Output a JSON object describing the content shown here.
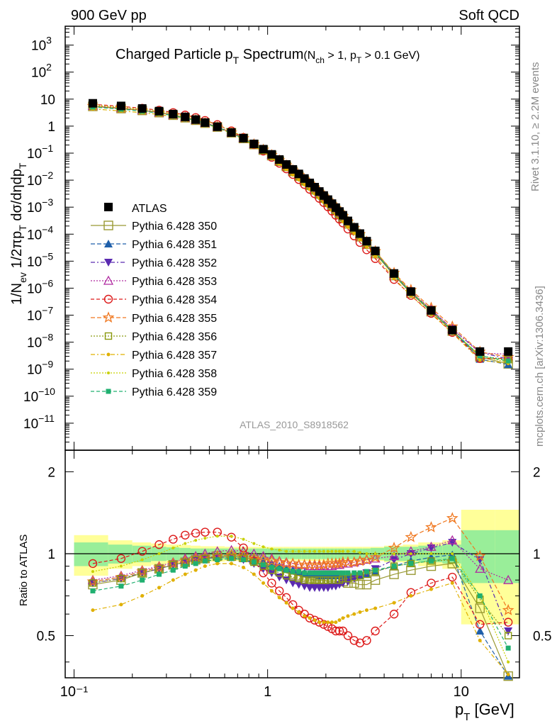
{
  "header": {
    "left": "900 GeV pp",
    "right": "Soft QCD"
  },
  "side_labels": {
    "rivet": "Rivet 3.1.10, ≥ 2.2M events",
    "mcplots": "mcplots.cern.ch [arXiv:1306.3436]"
  },
  "watermark": "ATLAS_2010_S8918562",
  "chart_data": {
    "type": "scatter",
    "title_main": "Charged Particle p",
    "title_main_sub": "T",
    "title_main_rest": " Spectrum",
    "title_cut": "(N",
    "title_cut_sub1": "ch",
    "title_cut_mid": " > 1, p",
    "title_cut_sub2": "T",
    "title_cut_rest": " > 0.1 GeV)",
    "ylabel_text": "1/N",
    "ylabel_sub1": "ev",
    "ylabel_mid": " 1/2πp",
    "ylabel_sub2": "T",
    "ylabel_rest": " dσ/dηdp",
    "ylabel_sub3": "T",
    "xlabel_main": "p",
    "xlabel_sub": "T",
    "xlabel_rest": "  [GeV]",
    "ratio_ylabel": "Ratio to ATLAS",
    "xscale": "log",
    "yscale": "log",
    "xlim": [
      0.09,
      20
    ],
    "ylim": [
      1e-12,
      5000
    ],
    "ratio_ylim": [
      0.35,
      2.4
    ],
    "x_tick_labels": [
      "10⁻¹",
      "1",
      "10"
    ],
    "y_tick_labels": [
      {
        "base": "10",
        "exp": "3"
      },
      {
        "base": "10",
        "exp": "2"
      },
      {
        "base": "10",
        "exp": ""
      },
      {
        "base": "1",
        "exp": ""
      },
      {
        "base": "10",
        "exp": "−1"
      },
      {
        "base": "10",
        "exp": "−2"
      },
      {
        "base": "10",
        "exp": "−3"
      },
      {
        "base": "10",
        "exp": "−4"
      },
      {
        "base": "10",
        "exp": "−5"
      },
      {
        "base": "10",
        "exp": "−6"
      },
      {
        "base": "10",
        "exp": "−7"
      },
      {
        "base": "10",
        "exp": "−8"
      },
      {
        "base": "10",
        "exp": "−9"
      },
      {
        "base": "10",
        "exp": "−10"
      },
      {
        "base": "10",
        "exp": "−11"
      }
    ],
    "ratio_tick_labels": [
      "2",
      "1",
      "0.5"
    ],
    "x": [
      0.125,
      0.175,
      0.225,
      0.275,
      0.325,
      0.375,
      0.425,
      0.475,
      0.55,
      0.65,
      0.75,
      0.85,
      0.95,
      1.05,
      1.15,
      1.25,
      1.35,
      1.45,
      1.55,
      1.65,
      1.75,
      1.85,
      1.95,
      2.05,
      2.15,
      2.25,
      2.35,
      2.45,
      2.6,
      2.8,
      3.0,
      3.25,
      3.6,
      4.5,
      5.5,
      7.0,
      9.0,
      12.5,
      17.5
    ],
    "data_values": [
      7.0,
      5.6,
      4.5,
      3.6,
      2.8,
      2.2,
      1.75,
      1.35,
      0.95,
      0.58,
      0.36,
      0.22,
      0.14,
      0.09,
      0.058,
      0.038,
      0.025,
      0.017,
      0.0115,
      0.0079,
      0.0055,
      0.0038,
      0.0027,
      0.0019,
      0.00135,
      0.00096,
      0.00069,
      0.0005,
      0.00031,
      0.00018,
      0.000105,
      5.5e-05,
      2.4e-05,
      3.5e-06,
      7.5e-07,
      1.5e-07,
      2.8e-08,
      4.5e-09,
      4.5e-09
    ],
    "band_x_edges": [
      0.1,
      0.15,
      0.2,
      0.25,
      0.3,
      0.35,
      0.4,
      0.45,
      0.5,
      0.6,
      0.7,
      0.8,
      0.9,
      1.0,
      1.1,
      1.2,
      1.3,
      1.4,
      1.5,
      1.6,
      1.7,
      1.8,
      1.9,
      2.0,
      2.1,
      2.2,
      2.3,
      2.4,
      2.5,
      2.7,
      2.9,
      3.1,
      3.4,
      4.0,
      5.0,
      6.0,
      8.0,
      10.0,
      15.0,
      20.0
    ],
    "band_stat": [
      0.1,
      0.08,
      0.07,
      0.06,
      0.055,
      0.05,
      0.045,
      0.045,
      0.045,
      0.045,
      0.045,
      0.045,
      0.045,
      0.045,
      0.045,
      0.045,
      0.045,
      0.045,
      0.045,
      0.045,
      0.045,
      0.045,
      0.045,
      0.045,
      0.045,
      0.045,
      0.045,
      0.045,
      0.045,
      0.045,
      0.045,
      0.045,
      0.05,
      0.06,
      0.06,
      0.07,
      0.08,
      0.22,
      0.22
    ],
    "band_total": [
      0.17,
      0.12,
      0.1,
      0.09,
      0.08,
      0.075,
      0.07,
      0.065,
      0.065,
      0.06,
      0.06,
      0.06,
      0.06,
      0.06,
      0.06,
      0.06,
      0.06,
      0.06,
      0.06,
      0.06,
      0.06,
      0.06,
      0.06,
      0.06,
      0.06,
      0.06,
      0.06,
      0.06,
      0.06,
      0.06,
      0.06,
      0.06,
      0.06,
      0.07,
      0.08,
      0.1,
      0.12,
      0.45,
      0.45
    ],
    "legend": {
      "placement": "middle-left",
      "data_label": "ATLAS"
    },
    "series": [
      {
        "name": "Pythia 6.428 350",
        "color": "#999933",
        "marker": "square-open",
        "dash": "solid",
        "ratios": [
          0.77,
          0.8,
          0.85,
          0.88,
          0.91,
          0.93,
          0.95,
          0.96,
          0.98,
          0.98,
          0.97,
          0.95,
          0.93,
          0.9,
          0.87,
          0.85,
          0.84,
          0.83,
          0.82,
          0.81,
          0.8,
          0.8,
          0.8,
          0.79,
          0.79,
          0.79,
          0.79,
          0.79,
          0.78,
          0.78,
          0.77,
          0.77,
          0.8,
          0.84,
          0.87,
          0.9,
          0.92,
          0.63,
          0.35
        ]
      },
      {
        "name": "Pythia 6.428 351",
        "color": "#1f5faa",
        "marker": "triangle-up",
        "dash": "6 3",
        "ratios": [
          0.79,
          0.82,
          0.86,
          0.89,
          0.92,
          0.94,
          0.96,
          0.97,
          0.98,
          0.99,
          0.98,
          0.96,
          0.94,
          0.92,
          0.9,
          0.88,
          0.87,
          0.86,
          0.85,
          0.84,
          0.84,
          0.83,
          0.83,
          0.83,
          0.83,
          0.83,
          0.83,
          0.83,
          0.83,
          0.83,
          0.83,
          0.84,
          0.86,
          0.9,
          0.94,
          0.97,
          0.99,
          0.52,
          0.33
        ]
      },
      {
        "name": "Pythia 6.428 352",
        "color": "#5a2ab0",
        "marker": "triangle-down",
        "dash": "6 3 2 3",
        "ratios": [
          0.78,
          0.81,
          0.85,
          0.88,
          0.91,
          0.93,
          0.95,
          0.96,
          0.97,
          0.97,
          0.95,
          0.92,
          0.88,
          0.85,
          0.82,
          0.8,
          0.78,
          0.77,
          0.76,
          0.75,
          0.75,
          0.75,
          0.75,
          0.75,
          0.76,
          0.76,
          0.77,
          0.78,
          0.79,
          0.81,
          0.83,
          0.85,
          0.88,
          0.95,
          1.0,
          1.05,
          1.1,
          0.95,
          0.52
        ]
      },
      {
        "name": "Pythia 6.428 353",
        "color": "#b02aa0",
        "marker": "triangle-up-open",
        "dash": "2 2",
        "ratios": [
          0.8,
          0.83,
          0.87,
          0.9,
          0.93,
          0.96,
          0.98,
          1.0,
          1.02,
          1.03,
          1.02,
          1.0,
          0.98,
          0.96,
          0.94,
          0.93,
          0.92,
          0.91,
          0.91,
          0.9,
          0.9,
          0.9,
          0.9,
          0.9,
          0.9,
          0.91,
          0.91,
          0.92,
          0.92,
          0.93,
          0.94,
          0.95,
          0.96,
          0.98,
          1.02,
          1.06,
          1.12,
          0.88,
          0.8
        ]
      },
      {
        "name": "Pythia 6.428 354",
        "color": "#dd1a1a",
        "marker": "circle-open",
        "dash": "5 3",
        "ratios": [
          0.92,
          0.96,
          1.02,
          1.08,
          1.13,
          1.17,
          1.19,
          1.2,
          1.2,
          1.15,
          1.05,
          0.94,
          0.85,
          0.78,
          0.73,
          0.69,
          0.65,
          0.62,
          0.6,
          0.58,
          0.57,
          0.56,
          0.55,
          0.54,
          0.53,
          0.52,
          0.52,
          0.52,
          0.5,
          0.48,
          0.47,
          0.48,
          0.52,
          0.6,
          0.72,
          0.78,
          0.82,
          0.55,
          0.56
        ]
      },
      {
        "name": "Pythia 6.428 355",
        "color": "#f07820",
        "marker": "star-open",
        "dash": "6 3",
        "ratios": [
          0.79,
          0.82,
          0.86,
          0.89,
          0.92,
          0.94,
          0.96,
          0.97,
          0.98,
          0.99,
          0.98,
          0.96,
          0.95,
          0.94,
          0.93,
          0.92,
          0.92,
          0.91,
          0.91,
          0.91,
          0.91,
          0.91,
          0.91,
          0.92,
          0.92,
          0.92,
          0.92,
          0.93,
          0.93,
          0.93,
          0.94,
          0.95,
          0.97,
          1.05,
          1.15,
          1.25,
          1.35,
          0.98,
          0.62
        ]
      },
      {
        "name": "Pythia 6.428 356",
        "color": "#8a9a10",
        "marker": "square-open-small",
        "dash": "2 2",
        "ratios": [
          0.78,
          0.81,
          0.85,
          0.88,
          0.91,
          0.93,
          0.95,
          0.96,
          0.97,
          0.97,
          0.96,
          0.93,
          0.9,
          0.87,
          0.85,
          0.83,
          0.82,
          0.81,
          0.8,
          0.8,
          0.8,
          0.8,
          0.8,
          0.8,
          0.8,
          0.8,
          0.8,
          0.81,
          0.81,
          0.82,
          0.83,
          0.84,
          0.86,
          0.9,
          0.92,
          0.94,
          0.95,
          0.68,
          0.5
        ]
      },
      {
        "name": "Pythia 6.428 357",
        "color": "#e0b000",
        "marker": "dot",
        "dash": "6 3 2 3",
        "ratios": [
          0.62,
          0.65,
          0.7,
          0.75,
          0.8,
          0.84,
          0.87,
          0.9,
          0.92,
          0.92,
          0.89,
          0.84,
          0.78,
          0.73,
          0.69,
          0.66,
          0.63,
          0.61,
          0.59,
          0.58,
          0.57,
          0.56,
          0.56,
          0.56,
          0.56,
          0.56,
          0.57,
          0.58,
          0.59,
          0.6,
          0.61,
          0.62,
          0.63,
          0.66,
          0.7,
          0.74,
          0.78,
          0.48,
          0.36
        ]
      },
      {
        "name": "Pythia 6.428 358",
        "color": "#c8d000",
        "marker": "dot-small",
        "dash": "2 2",
        "ratios": [
          0.86,
          0.9,
          0.95,
          1.0,
          1.05,
          1.09,
          1.12,
          1.14,
          1.16,
          1.16,
          1.13,
          1.09,
          1.06,
          1.04,
          1.03,
          1.02,
          1.02,
          1.02,
          1.02,
          1.02,
          1.02,
          1.02,
          1.02,
          1.02,
          1.02,
          1.02,
          1.02,
          1.02,
          1.02,
          1.02,
          1.01,
          1.0,
          1.0,
          1.0,
          1.0,
          1.0,
          1.0,
          0.7,
          0.4
        ]
      },
      {
        "name": "Pythia 6.428 359",
        "color": "#20b070",
        "marker": "square-filled-small",
        "dash": "5 3",
        "ratios": [
          0.73,
          0.76,
          0.8,
          0.84,
          0.87,
          0.9,
          0.92,
          0.94,
          0.95,
          0.96,
          0.95,
          0.93,
          0.91,
          0.89,
          0.88,
          0.87,
          0.86,
          0.86,
          0.85,
          0.85,
          0.85,
          0.85,
          0.85,
          0.85,
          0.85,
          0.85,
          0.85,
          0.85,
          0.85,
          0.85,
          0.85,
          0.86,
          0.87,
          0.9,
          0.92,
          0.94,
          0.96,
          0.7,
          0.45
        ]
      }
    ]
  }
}
